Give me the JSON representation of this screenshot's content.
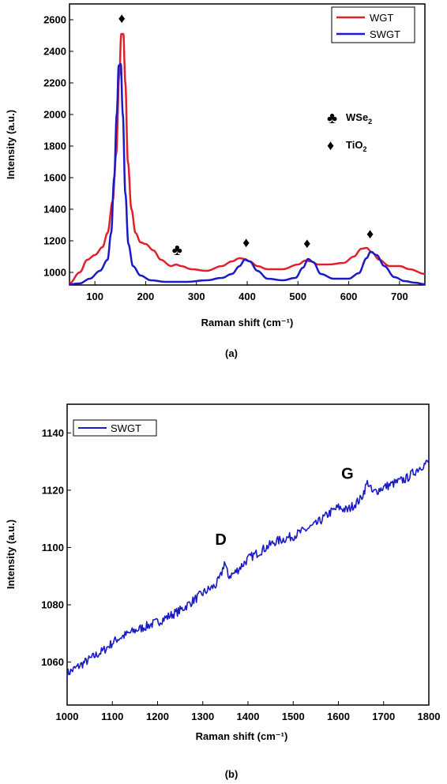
{
  "chart_data": [
    {
      "type": "line",
      "panel_label": "(a)",
      "xlabel": "Raman shift (cm⁻¹)",
      "ylabel": "Intensity (a.u.)",
      "xlim": [
        50,
        750
      ],
      "ylim": [
        920,
        2700
      ],
      "xticks": [
        100,
        200,
        300,
        400,
        500,
        600,
        700
      ],
      "yticks": [
        1000,
        1200,
        1400,
        1600,
        1800,
        2000,
        2200,
        2400,
        2600
      ],
      "grid": false,
      "legend_position": "top-right",
      "series": [
        {
          "name": "WGT",
          "color": "#e0202a",
          "x": [
            50,
            70,
            85,
            100,
            115,
            125,
            135,
            142,
            148,
            152,
            156,
            160,
            165,
            172,
            180,
            190,
            200,
            215,
            230,
            250,
            260,
            270,
            290,
            320,
            350,
            370,
            385,
            395,
            405,
            420,
            440,
            470,
            500,
            515,
            525,
            540,
            560,
            590,
            610,
            625,
            635,
            645,
            660,
            680,
            700,
            720,
            750
          ],
          "y": [
            930,
            1000,
            1080,
            1110,
            1160,
            1250,
            1450,
            1750,
            2250,
            2510,
            2510,
            2200,
            1700,
            1400,
            1250,
            1190,
            1180,
            1140,
            1080,
            1040,
            1050,
            1040,
            1020,
            1010,
            1040,
            1070,
            1090,
            1085,
            1070,
            1040,
            1020,
            1020,
            1050,
            1075,
            1070,
            1050,
            1050,
            1060,
            1100,
            1150,
            1155,
            1130,
            1080,
            1040,
            1040,
            1020,
            990
          ]
        },
        {
          "name": "SWGT",
          "color": "#1a1ac8",
          "x": [
            50,
            70,
            90,
            110,
            125,
            132,
            138,
            143,
            147,
            151,
            155,
            160,
            166,
            175,
            190,
            210,
            240,
            280,
            320,
            350,
            370,
            385,
            395,
            405,
            420,
            440,
            470,
            495,
            510,
            520,
            530,
            545,
            570,
            600,
            620,
            635,
            643,
            655,
            670,
            690,
            710,
            730,
            750
          ],
          "y": [
            925,
            930,
            960,
            1010,
            1080,
            1250,
            1600,
            2000,
            2310,
            2320,
            2000,
            1500,
            1180,
            1040,
            980,
            950,
            940,
            940,
            950,
            965,
            990,
            1040,
            1080,
            1070,
            1010,
            960,
            950,
            965,
            1030,
            1085,
            1065,
            990,
            960,
            960,
            995,
            1090,
            1130,
            1110,
            1040,
            970,
            945,
            935,
            925
          ]
        }
      ],
      "markers": [
        {
          "symbol": "♦",
          "x": 153,
          "y": 2610
        },
        {
          "symbol": "♣",
          "x": 262,
          "y": 1140
        },
        {
          "symbol": "♦",
          "x": 398,
          "y": 1190
        },
        {
          "symbol": "♦",
          "x": 518,
          "y": 1185
        },
        {
          "symbol": "♦",
          "x": 642,
          "y": 1245
        }
      ],
      "marker_legend": [
        {
          "symbol": "♣",
          "label": "WSe",
          "subscript": "2"
        },
        {
          "symbol": "♦",
          "label": "TiO",
          "subscript": "2"
        }
      ]
    },
    {
      "type": "line",
      "panel_label": "(b)",
      "xlabel": "Raman shift (cm⁻¹)",
      "ylabel": "Intensity (a.u.)",
      "xlim": [
        1000,
        1800
      ],
      "ylim": [
        1045,
        1150
      ],
      "xticks": [
        1000,
        1100,
        1200,
        1300,
        1400,
        1500,
        1600,
        1700,
        1800
      ],
      "yticks": [
        1060,
        1080,
        1100,
        1120,
        1140
      ],
      "grid": false,
      "legend_position": "top-left",
      "series": [
        {
          "name": "SWGT",
          "color": "#1a1ac8",
          "x": [
            1000,
            1040,
            1080,
            1110,
            1150,
            1200,
            1250,
            1300,
            1330,
            1340,
            1348,
            1356,
            1370,
            1400,
            1430,
            1460,
            1500,
            1550,
            1580,
            1600,
            1620,
            1650,
            1665,
            1675,
            1700,
            1750,
            1780,
            1800
          ],
          "y": [
            1056,
            1060,
            1064,
            1068,
            1071,
            1074,
            1078,
            1084,
            1087,
            1090,
            1095,
            1090,
            1091,
            1096,
            1099,
            1102,
            1104,
            1108,
            1112,
            1114,
            1113,
            1117,
            1123,
            1119,
            1121,
            1124,
            1128,
            1130
          ]
        }
      ],
      "annotations": [
        {
          "text": "D",
          "x": 1340,
          "y": 1101
        },
        {
          "text": "G",
          "x": 1620,
          "y": 1124
        }
      ]
    }
  ]
}
